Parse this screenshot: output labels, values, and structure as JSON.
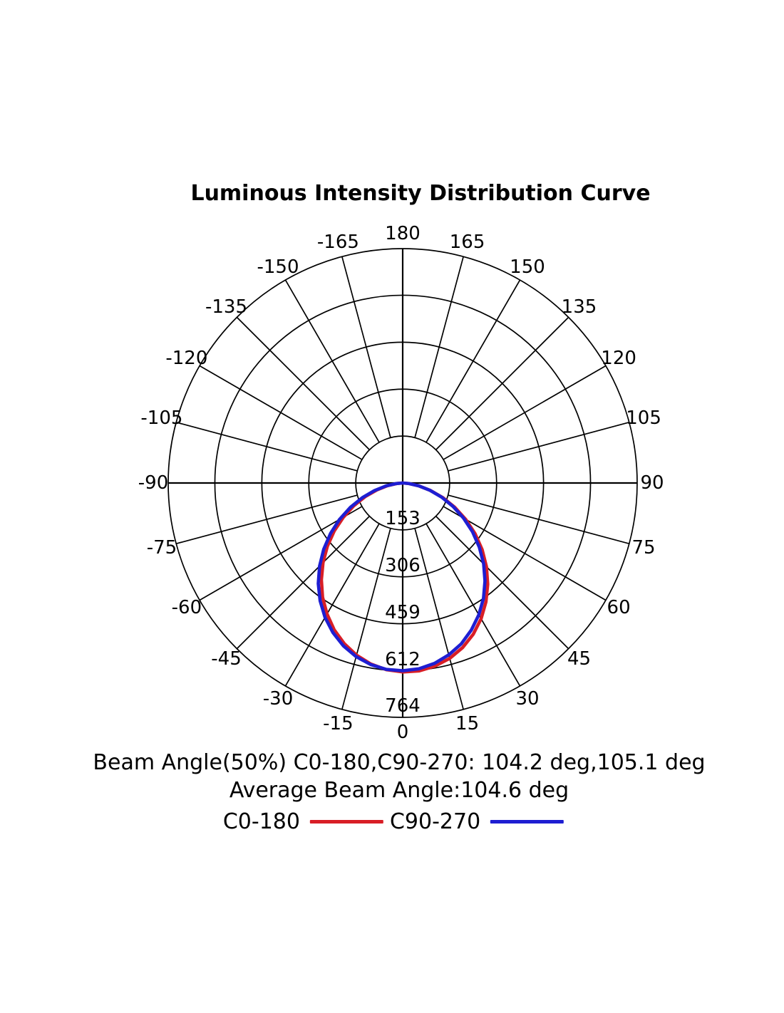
{
  "title": "Luminous Intensity Distribution Curve",
  "chart_data": {
    "type": "polar_line",
    "title": "Luminous Intensity Distribution Curve",
    "angle_unit": "deg",
    "angle_zero_position": "bottom",
    "angle_ticks": [
      0,
      15,
      30,
      45,
      60,
      75,
      90,
      105,
      120,
      135,
      150,
      165,
      180,
      -15,
      -30,
      -45,
      -60,
      -75,
      -90,
      -105,
      -120,
      -135,
      -150,
      -165
    ],
    "radial_ticks": [
      153,
      306,
      459,
      612,
      764
    ],
    "radial_max": 764,
    "grid": true,
    "grid_color": "#000000",
    "angles": [
      -90,
      -85,
      -80,
      -75,
      -70,
      -65,
      -60,
      -55,
      -50,
      -45,
      -40,
      -35,
      -30,
      -25,
      -20,
      -15,
      -10,
      -5,
      0,
      5,
      10,
      15,
      20,
      25,
      30,
      35,
      40,
      45,
      50,
      55,
      60,
      65,
      70,
      75,
      80,
      85,
      90
    ],
    "series": [
      {
        "name": "C0-180",
        "color": "#d81e26",
        "peak_value": 616,
        "values": [
          0,
          19,
          50,
          87,
          130,
          176,
          223,
          272,
          320,
          367,
          412,
          455,
          493,
          528,
          557,
          581,
          599,
          611,
          616,
          615,
          606,
          592,
          571,
          544,
          511,
          473,
          431,
          386,
          338,
          288,
          237,
          187,
          139,
          93,
          53,
          20,
          0
        ]
      },
      {
        "name": "C90-270",
        "color": "#1e1ed2",
        "peak_value": 612,
        "values": [
          0,
          21,
          55,
          95,
          140,
          188,
          238,
          287,
          336,
          383,
          428,
          469,
          506,
          538,
          565,
          586,
          601,
          610,
          612,
          608,
          597,
          580,
          558,
          529,
          496,
          459,
          417,
          373,
          326,
          278,
          229,
          181,
          135,
          92,
          53,
          20,
          0
        ]
      }
    ]
  },
  "annotations": {
    "beam_angle_line": "Beam Angle(50%) C0-180,C90-270: 104.2 deg,105.1 deg",
    "average_beam_angle_line": "Average Beam Angle:104.6 deg"
  },
  "legend": [
    {
      "label": "C0-180",
      "color": "#d81e26"
    },
    {
      "label": "C90-270",
      "color": "#1e1ed2"
    }
  ]
}
